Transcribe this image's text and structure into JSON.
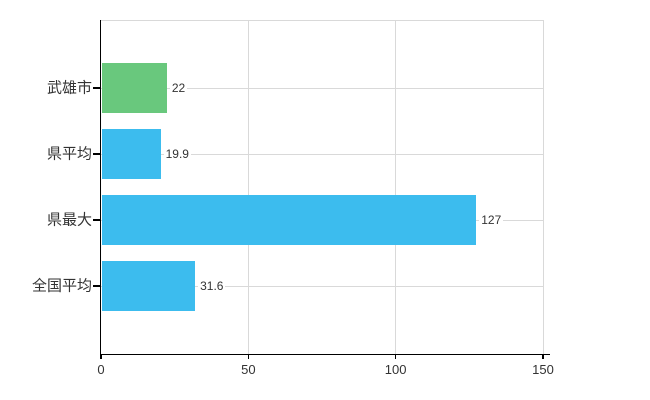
{
  "chart_data": {
    "type": "bar",
    "orientation": "horizontal",
    "title": "",
    "xlabel": "",
    "ylabel": "",
    "categories": [
      "武雄市",
      "県平均",
      "県最大",
      "全国平均"
    ],
    "values": [
      22,
      19.9,
      127,
      31.6
    ],
    "value_labels": [
      "22",
      "19.9",
      "127",
      "31.6"
    ],
    "bar_colors": [
      "#69c87d",
      "#3cbcee",
      "#3cbcee",
      "#3cbcee"
    ],
    "highlight_category": "武雄市",
    "xlim": [
      0,
      150
    ],
    "x_ticks": [
      0,
      50,
      100,
      150
    ],
    "x_tick_labels": [
      "0",
      "50",
      "100",
      "150"
    ],
    "grid": true,
    "legend_position": "none"
  },
  "colors": {
    "bar_highlight": "#69c87d",
    "bar_default": "#3cbcee",
    "gridline": "#d9d9d9",
    "axis": "#000000",
    "text": "#333333",
    "background": "#ffffff"
  }
}
